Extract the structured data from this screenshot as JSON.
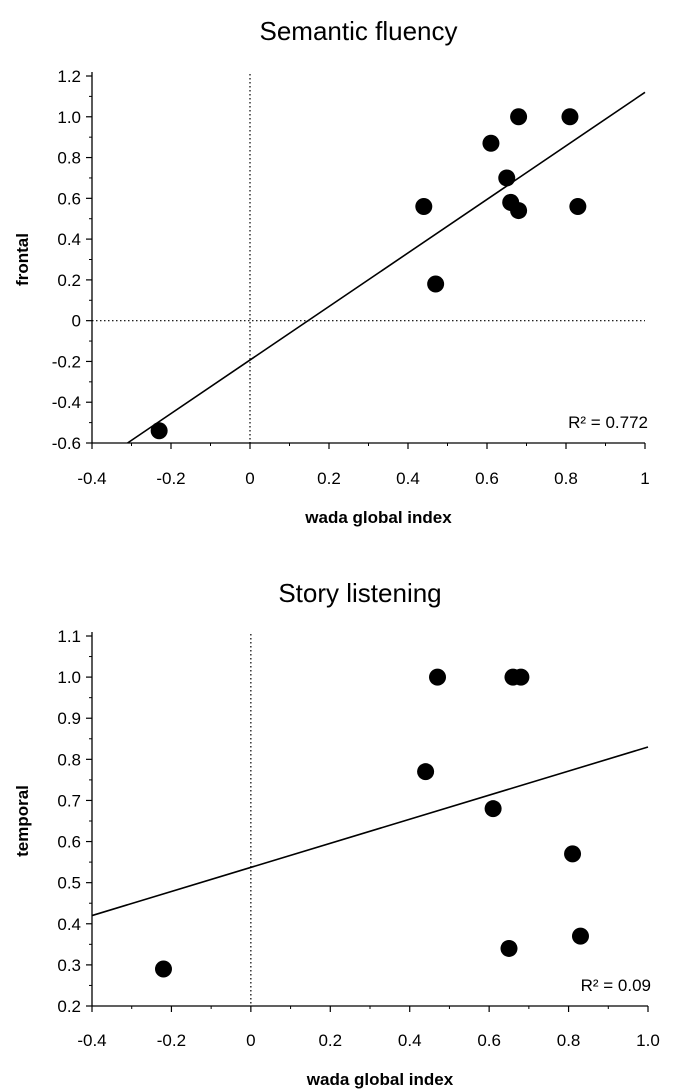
{
  "chart_data": [
    {
      "type": "scatter",
      "title": "Semantic fluency",
      "xlabel": "wada global index",
      "ylabel": "frontal",
      "xlim": [
        -0.4,
        1
      ],
      "ylim": [
        -0.6,
        1.2
      ],
      "x_ticks": [
        "-0.4",
        "-0.2",
        "0",
        "0.2",
        "0.4",
        "0.6",
        "0.8",
        "1"
      ],
      "y_ticks": [
        "-0.6",
        "-0.4",
        "-0.2",
        "0",
        "0.2",
        "0.4",
        "0.6",
        "0.8",
        "1.0",
        "1.2"
      ],
      "annotation": "R² = 0.772",
      "points": [
        {
          "x": -0.23,
          "y": -0.54
        },
        {
          "x": 0.44,
          "y": 0.56
        },
        {
          "x": 0.47,
          "y": 0.18
        },
        {
          "x": 0.61,
          "y": 0.87
        },
        {
          "x": 0.65,
          "y": 0.7
        },
        {
          "x": 0.66,
          "y": 0.58
        },
        {
          "x": 0.68,
          "y": 1.0
        },
        {
          "x": 0.68,
          "y": 0.54
        },
        {
          "x": 0.81,
          "y": 1.0
        },
        {
          "x": 0.83,
          "y": 0.56
        }
      ],
      "fit_line": {
        "x": [
          -0.31,
          1.0
        ],
        "y": [
          -0.6,
          1.12
        ]
      }
    },
    {
      "type": "scatter",
      "title": "Story listening",
      "xlabel": "wada global index",
      "ylabel": "temporal",
      "xlim": [
        -0.4,
        1.0
      ],
      "ylim": [
        0.2,
        1.1
      ],
      "x_ticks": [
        "-0.4",
        "-0.2",
        "0",
        "0.2",
        "0.4",
        "0.6",
        "0.8",
        "1.0"
      ],
      "y_ticks": [
        "0.2",
        "0.3",
        "0.4",
        "0.5",
        "0.6",
        "0.7",
        "0.8",
        "0.9",
        "1.0",
        "1.1"
      ],
      "annotation": "R² = 0.09",
      "points": [
        {
          "x": -0.22,
          "y": 0.29
        },
        {
          "x": 0.44,
          "y": 0.77
        },
        {
          "x": 0.47,
          "y": 1.0
        },
        {
          "x": 0.61,
          "y": 0.68
        },
        {
          "x": 0.65,
          "y": 0.34
        },
        {
          "x": 0.66,
          "y": 1.0
        },
        {
          "x": 0.68,
          "y": 1.0
        },
        {
          "x": 0.81,
          "y": 0.57
        },
        {
          "x": 0.83,
          "y": 0.37
        }
      ],
      "fit_line": {
        "x": [
          -0.4,
          1.0
        ],
        "y": [
          0.42,
          0.83
        ]
      }
    }
  ]
}
